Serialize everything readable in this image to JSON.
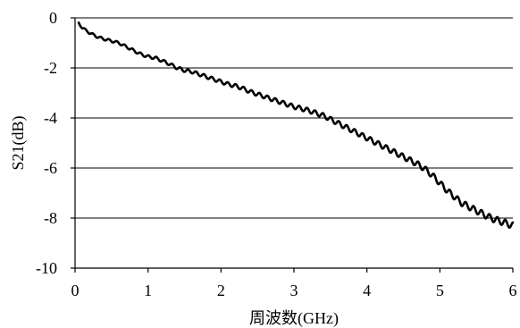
{
  "chart_data": {
    "type": "line",
    "title": "",
    "xlabel": "周波数(GHz)",
    "ylabel": "S21(dB)",
    "xlim": [
      0,
      6
    ],
    "ylim": [
      -10,
      0
    ],
    "x_ticks": [
      0,
      1,
      2,
      3,
      4,
      5,
      6
    ],
    "y_ticks": [
      0,
      -2,
      -4,
      -6,
      -8,
      -10
    ],
    "x_tick_labels": [
      "0",
      "1",
      "2",
      "3",
      "4",
      "5",
      "6"
    ],
    "y_tick_labels": [
      "0",
      "-2",
      "-4",
      "-6",
      "-8",
      "-10"
    ],
    "grid": "horizontal",
    "legend": "none",
    "line_color": "#000000",
    "series": [
      {
        "x": [
          0.05,
          0.1,
          0.2,
          0.3,
          0.4,
          0.5,
          0.6,
          0.7,
          0.8,
          0.9,
          1.0,
          1.1,
          1.2,
          1.3,
          1.4,
          1.5,
          1.6,
          1.7,
          1.8,
          1.9,
          2.0,
          2.1,
          2.2,
          2.3,
          2.4,
          2.5,
          2.6,
          2.7,
          2.8,
          2.9,
          3.0,
          3.1,
          3.2,
          3.3,
          3.4,
          3.5,
          3.6,
          3.7,
          3.8,
          3.9,
          4.0,
          4.1,
          4.2,
          4.3,
          4.4,
          4.5,
          4.6,
          4.7,
          4.8,
          4.9,
          5.0,
          5.1,
          5.2,
          5.3,
          5.4,
          5.5,
          5.6,
          5.7,
          5.8,
          5.9,
          6.0
        ],
        "values": [
          -0.2,
          -0.4,
          -0.6,
          -0.75,
          -0.85,
          -0.92,
          -1.0,
          -1.15,
          -1.3,
          -1.45,
          -1.55,
          -1.6,
          -1.72,
          -1.85,
          -2.0,
          -2.1,
          -2.15,
          -2.25,
          -2.35,
          -2.45,
          -2.55,
          -2.65,
          -2.72,
          -2.82,
          -2.95,
          -3.05,
          -3.15,
          -3.25,
          -3.35,
          -3.45,
          -3.55,
          -3.62,
          -3.7,
          -3.8,
          -3.9,
          -4.05,
          -4.2,
          -4.35,
          -4.5,
          -4.65,
          -4.8,
          -4.95,
          -5.1,
          -5.25,
          -5.4,
          -5.55,
          -5.7,
          -5.85,
          -6.05,
          -6.3,
          -6.6,
          -6.9,
          -7.15,
          -7.4,
          -7.55,
          -7.7,
          -7.85,
          -8.0,
          -8.1,
          -8.2,
          -8.3
        ]
      }
    ]
  }
}
